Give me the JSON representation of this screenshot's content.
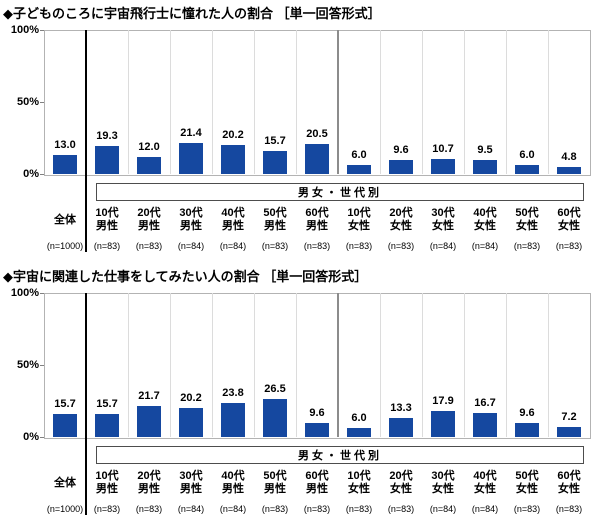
{
  "page": {
    "background": "#ffffff",
    "accent_bar_color": "#1548A0"
  },
  "chart_data": [
    {
      "type": "bar",
      "title": "◆子どものころに宇宙飛行士に憧れた人の割合 ［単一回答形式］",
      "group_band_label": "男女・世代別",
      "categories": [
        "全体",
        "10代男性",
        "20代男性",
        "30代男性",
        "40代男性",
        "50代男性",
        "60代男性",
        "10代女性",
        "20代女性",
        "30代女性",
        "40代女性",
        "50代女性",
        "60代女性"
      ],
      "category_labels": [
        [
          "全体"
        ],
        [
          "10代",
          "男性"
        ],
        [
          "20代",
          "男性"
        ],
        [
          "30代",
          "男性"
        ],
        [
          "40代",
          "男性"
        ],
        [
          "50代",
          "男性"
        ],
        [
          "60代",
          "男性"
        ],
        [
          "10代",
          "女性"
        ],
        [
          "20代",
          "女性"
        ],
        [
          "30代",
          "女性"
        ],
        [
          "40代",
          "女性"
        ],
        [
          "50代",
          "女性"
        ],
        [
          "60代",
          "女性"
        ]
      ],
      "n_labels": [
        "(n=1000)",
        "(n=83)",
        "(n=83)",
        "(n=84)",
        "(n=84)",
        "(n=83)",
        "(n=83)",
        "(n=83)",
        "(n=83)",
        "(n=84)",
        "(n=84)",
        "(n=83)",
        "(n=83)"
      ],
      "sample_sizes": [
        1000,
        83,
        83,
        84,
        84,
        83,
        83,
        83,
        83,
        84,
        84,
        83,
        83
      ],
      "values": [
        13.0,
        19.3,
        12.0,
        21.4,
        20.2,
        15.7,
        20.5,
        6.0,
        9.6,
        10.7,
        9.5,
        6.0,
        4.8
      ],
      "ylim": [
        0,
        100
      ],
      "yticks": [
        {
          "label": "100%",
          "value": 100
        },
        {
          "label": "50%",
          "value": 50
        },
        {
          "label": "0%",
          "value": 0
        }
      ],
      "bar_color": "#1548A0",
      "legend": "none",
      "grid": "vertical-category-separators"
    },
    {
      "type": "bar",
      "title": "◆宇宙に関連した仕事をしてみたい人の割合 ［単一回答形式］",
      "group_band_label": "男女・世代別",
      "categories": [
        "全体",
        "10代男性",
        "20代男性",
        "30代男性",
        "40代男性",
        "50代男性",
        "60代男性",
        "10代女性",
        "20代女性",
        "30代女性",
        "40代女性",
        "50代女性",
        "60代女性"
      ],
      "category_labels": [
        [
          "全体"
        ],
        [
          "10代",
          "男性"
        ],
        [
          "20代",
          "男性"
        ],
        [
          "30代",
          "男性"
        ],
        [
          "40代",
          "男性"
        ],
        [
          "50代",
          "男性"
        ],
        [
          "60代",
          "男性"
        ],
        [
          "10代",
          "女性"
        ],
        [
          "20代",
          "女性"
        ],
        [
          "30代",
          "女性"
        ],
        [
          "40代",
          "女性"
        ],
        [
          "50代",
          "女性"
        ],
        [
          "60代",
          "女性"
        ]
      ],
      "n_labels": [
        "(n=1000)",
        "(n=83)",
        "(n=83)",
        "(n=84)",
        "(n=84)",
        "(n=83)",
        "(n=83)",
        "(n=83)",
        "(n=83)",
        "(n=84)",
        "(n=84)",
        "(n=83)",
        "(n=83)"
      ],
      "sample_sizes": [
        1000,
        83,
        83,
        84,
        84,
        83,
        83,
        83,
        83,
        84,
        84,
        83,
        83
      ],
      "values": [
        15.7,
        15.7,
        21.7,
        20.2,
        23.8,
        26.5,
        9.6,
        6.0,
        13.3,
        17.9,
        16.7,
        9.6,
        7.2
      ],
      "ylim": [
        0,
        100
      ],
      "yticks": [
        {
          "label": "100%",
          "value": 100
        },
        {
          "label": "50%",
          "value": 50
        },
        {
          "label": "0%",
          "value": 0
        }
      ],
      "bar_color": "#1548A0",
      "legend": "none",
      "grid": "vertical-category-separators"
    }
  ]
}
